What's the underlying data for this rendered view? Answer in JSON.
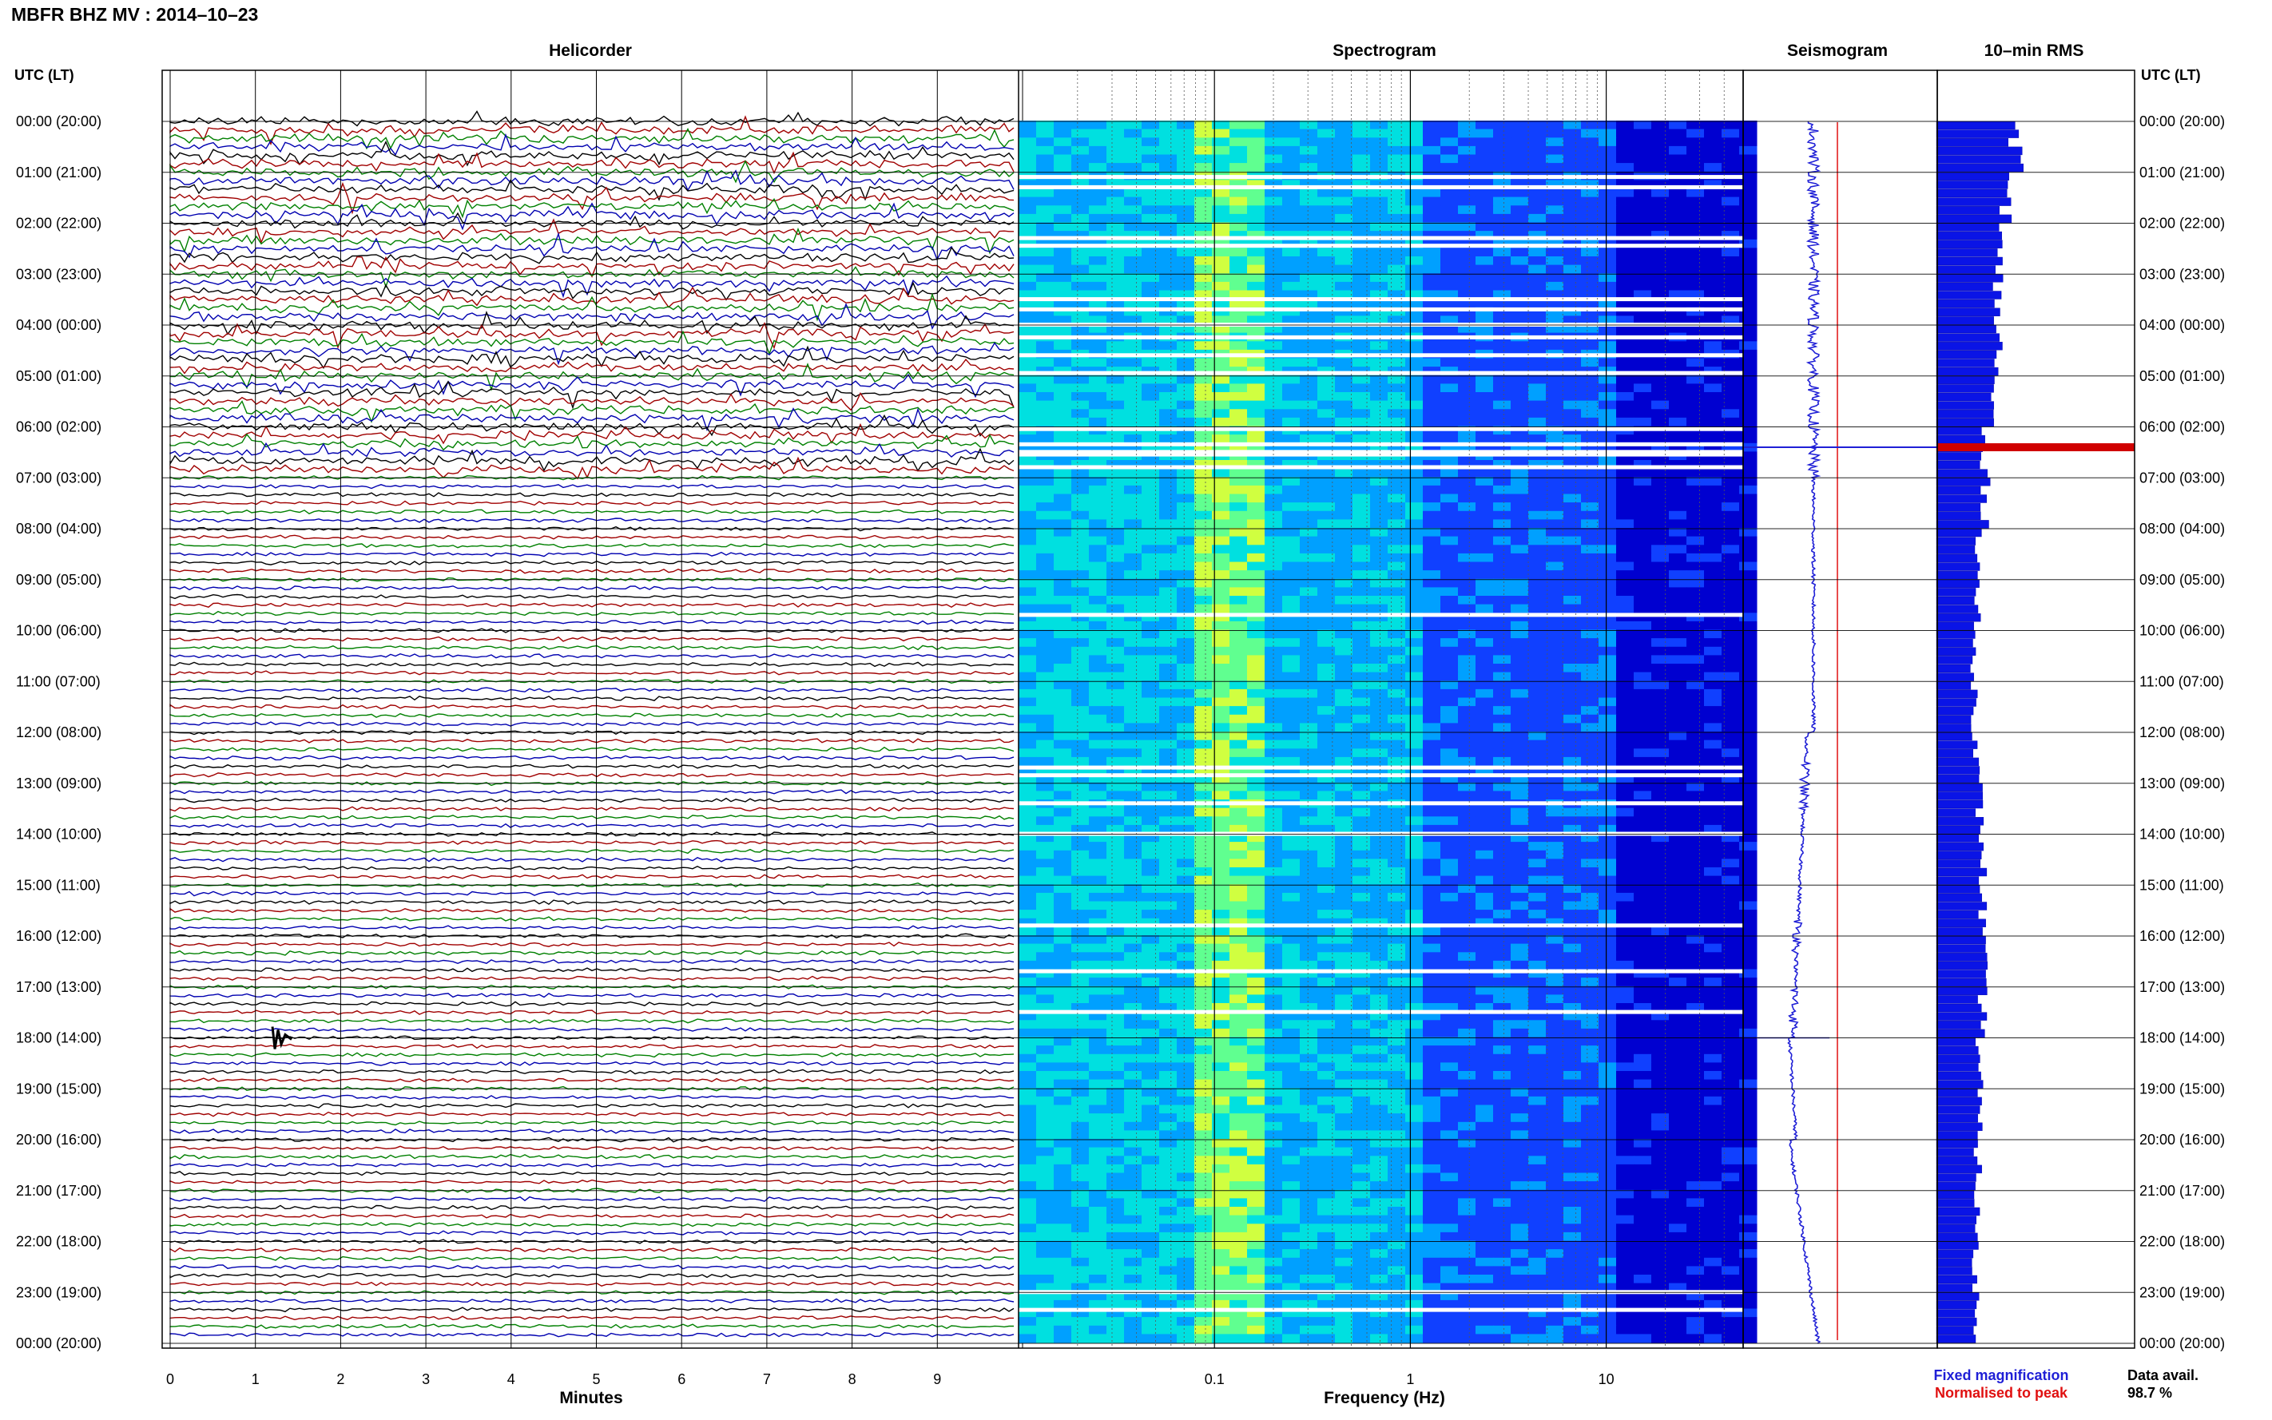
{
  "page_title": "MBFR BHZ MV : 2014–10–23",
  "axis_label_left": "UTC (LT)",
  "axis_label_right": "UTC (LT)",
  "panels": {
    "helicorder": {
      "title": "Helicorder",
      "xlabel": "Minutes"
    },
    "spectrogram": {
      "title": "Spectrogram",
      "xlabel": "Frequency (Hz)"
    },
    "seismogram": {
      "title": "Seismogram"
    },
    "rms": {
      "title": "10–min RMS"
    }
  },
  "legend": {
    "fixed": "Fixed magnification",
    "normalised": "Normalised to peak",
    "fixed_color": "#1f1fd6",
    "normalised_color": "#e01010"
  },
  "data_avail_label": "Data avail.",
  "data_avail_value": "98.7 %",
  "chart_data": [
    {
      "type": "line",
      "panel": "helicorder",
      "xlabel": "Minutes",
      "x_ticks": [
        "0",
        "1",
        "2",
        "3",
        "4",
        "5",
        "6",
        "7",
        "8",
        "9"
      ],
      "xlim": [
        0,
        10
      ],
      "time_ticks": [
        "00:00 (20:00)",
        "01:00 (21:00)",
        "02:00 (22:00)",
        "03:00 (23:00)",
        "04:00 (00:00)",
        "05:00 (01:00)",
        "06:00 (02:00)",
        "07:00 (03:00)",
        "08:00 (04:00)",
        "09:00 (05:00)",
        "10:00 (06:00)",
        "11:00 (07:00)",
        "12:00 (08:00)",
        "13:00 (09:00)",
        "14:00 (10:00)",
        "15:00 (11:00)",
        "16:00 (12:00)",
        "17:00 (13:00)",
        "18:00 (14:00)",
        "19:00 (15:00)",
        "20:00 (16:00)",
        "21:00 (17:00)",
        "22:00 (18:00)",
        "23:00 (19:00)",
        "00:00 (20:00)"
      ],
      "lines_per_hour": 6,
      "trace_colors": [
        "#000000",
        "#a00000",
        "#008000",
        "#0000b0"
      ],
      "noisy_hours_end": 7,
      "event": {
        "hour": 18.0,
        "minute": 1.2,
        "label": ""
      }
    },
    {
      "type": "heatmap",
      "panel": "spectrogram",
      "xlabel": "Frequency (Hz)",
      "x_scale": "log",
      "x_ticks": [
        "0.1",
        "1",
        "10"
      ],
      "xlim": [
        0.01,
        50
      ],
      "gaps_hours": [
        1.1,
        1.3,
        2.3,
        2.45,
        3.5,
        3.7,
        4.0,
        4.25,
        4.6,
        4.95,
        6.05,
        6.35,
        6.5,
        6.55,
        6.8,
        9.7,
        12.7,
        12.85,
        13.4,
        14.0,
        15.8,
        16.7,
        17.5,
        23.0,
        23.35
      ],
      "colormap": [
        "#00007a",
        "#0000d0",
        "#1040ff",
        "#00a0ff",
        "#00e0e0",
        "#60ff90",
        "#d0ff40"
      ]
    },
    {
      "type": "line",
      "panel": "seismogram",
      "series": [
        {
          "name": "Fixed magnification",
          "color": "#1f1fd6"
        },
        {
          "name": "Normalised to peak",
          "color": "#e01010"
        }
      ],
      "peak_hour": 6.4
    },
    {
      "type": "bar",
      "panel": "rms",
      "orientation": "horizontal",
      "bin_minutes": 10,
      "color": "#0a14e6",
      "peak": {
        "hour": 6.4,
        "color": "#d00000"
      },
      "values_hourly": [
        2.6,
        2.3,
        2.0,
        2.0,
        2.0,
        1.8,
        1.5,
        1.6,
        1.4,
        1.3,
        1.2,
        1.25,
        1.3,
        1.4,
        1.5,
        1.5,
        1.5,
        1.5,
        1.4,
        1.35,
        1.35,
        1.3,
        1.25,
        1.3
      ]
    }
  ]
}
